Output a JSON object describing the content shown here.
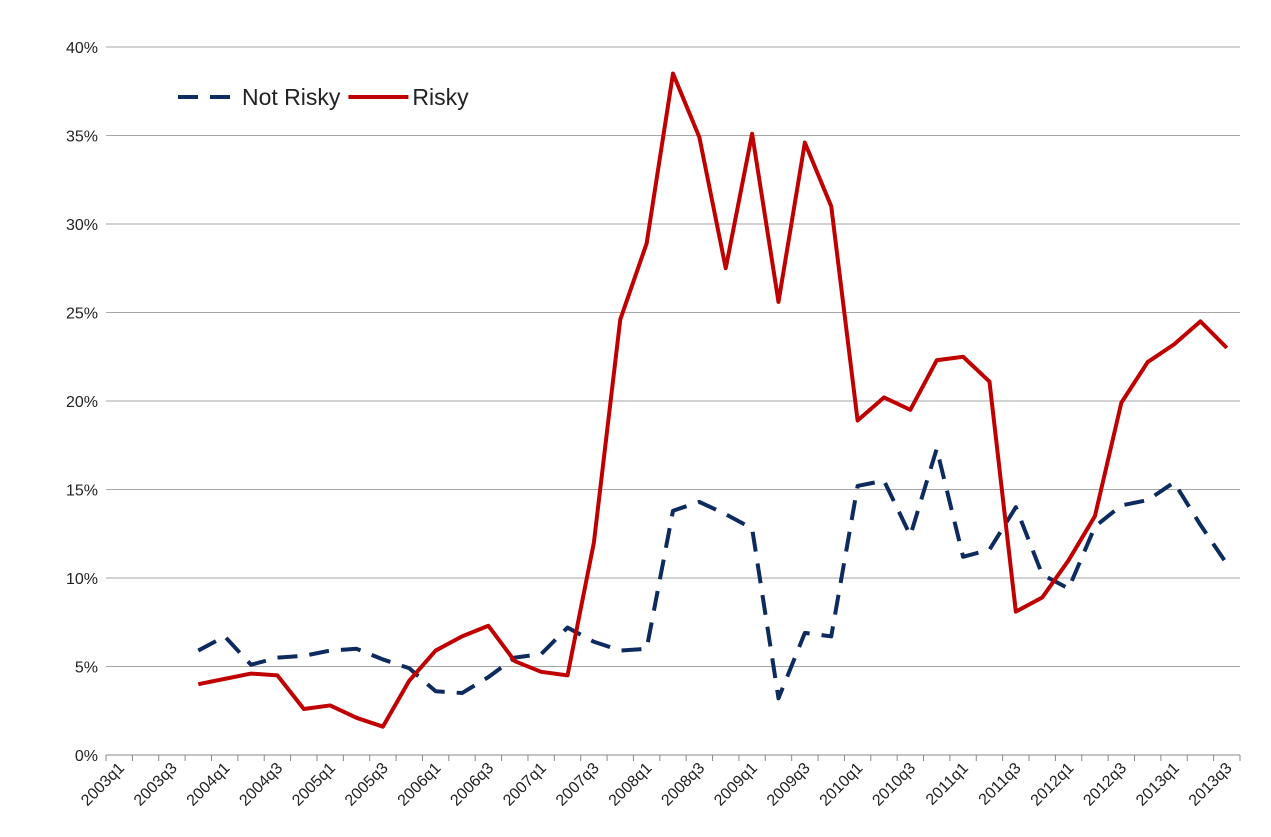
{
  "chart_data": {
    "type": "line",
    "categories": [
      "2003q1",
      null,
      "2003q3",
      null,
      "2004q1",
      null,
      "2004q3",
      null,
      "2005q1",
      null,
      "2005q3",
      null,
      "2006q1",
      null,
      "2006q3",
      null,
      "2007q1",
      null,
      "2007q3",
      null,
      "2008q1",
      null,
      "2008q3",
      null,
      "2009q1",
      null,
      "2009q3",
      null,
      "2010q1",
      null,
      "2010q3",
      null,
      "2011q1",
      null,
      "2011q3",
      null,
      "2012q1",
      null,
      "2012q3",
      null,
      "2013q1",
      null,
      "2013q3"
    ],
    "series": [
      {
        "name": "Not Risky",
        "color": "#0d2b5e",
        "dashed": true,
        "values": [
          null,
          null,
          null,
          5.9,
          6.7,
          5.1,
          5.5,
          5.6,
          5.9,
          6.0,
          5.4,
          4.9,
          3.6,
          3.5,
          4.4,
          5.5,
          5.7,
          7.2,
          6.4,
          5.9,
          6.0,
          13.8,
          14.3,
          13.6,
          12.8,
          3.2,
          6.9,
          6.7,
          15.2,
          15.5,
          12.4,
          17.3,
          11.2,
          11.6,
          14.0,
          10.2,
          9.4,
          12.9,
          14.1,
          14.4,
          15.4,
          13.0,
          10.8
        ]
      },
      {
        "name": "Risky",
        "color": "#c00000",
        "dashed": false,
        "values": [
          null,
          null,
          null,
          4.0,
          4.3,
          4.6,
          4.5,
          2.6,
          2.8,
          2.1,
          1.6,
          4.2,
          5.9,
          6.7,
          7.3,
          5.3,
          4.7,
          4.5,
          12.0,
          24.6,
          28.9,
          38.5,
          34.9,
          27.5,
          35.1,
          25.6,
          34.6,
          31.0,
          18.9,
          20.2,
          19.5,
          22.3,
          22.5,
          21.1,
          8.1,
          8.9,
          11.0,
          13.5,
          19.9,
          22.2,
          23.2,
          24.5,
          23.0
        ]
      }
    ],
    "ylim": [
      0,
      40
    ],
    "yticks": [
      {
        "value": 0,
        "label": "0%"
      },
      {
        "value": 5,
        "label": "5%"
      },
      {
        "value": 10,
        "label": "10%"
      },
      {
        "value": 15,
        "label": "15%"
      },
      {
        "value": 20,
        "label": "20%"
      },
      {
        "value": 25,
        "label": "25%"
      },
      {
        "value": 30,
        "label": "30%"
      },
      {
        "value": 35,
        "label": "35%"
      },
      {
        "value": 40,
        "label": "40%"
      }
    ],
    "grid": true,
    "legend": "upper-left"
  }
}
